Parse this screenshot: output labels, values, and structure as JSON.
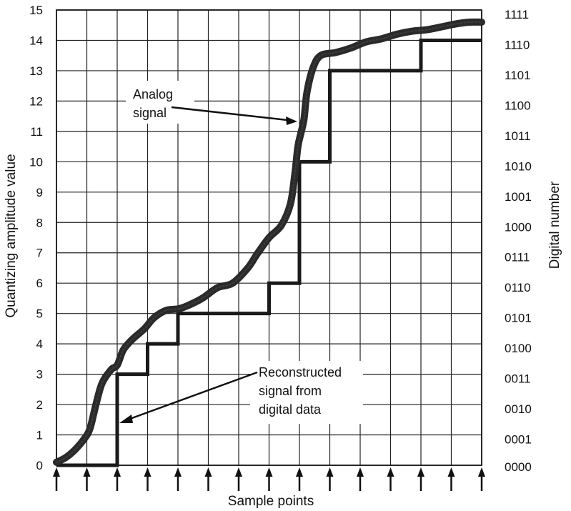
{
  "chart_data": {
    "type": "line",
    "xlabel": "Sample points",
    "ylabel": "Quantizing amplitude value",
    "ylabel_right": "Digital number",
    "ylim": [
      0,
      15
    ],
    "xlim": [
      0,
      14
    ],
    "grid": true,
    "y_ticks": [
      "0",
      "1",
      "2",
      "3",
      "4",
      "5",
      "6",
      "7",
      "8",
      "9",
      "10",
      "11",
      "12",
      "13",
      "14",
      "15"
    ],
    "y_ticks_right": [
      "0000",
      "0001",
      "0010",
      "0011",
      "0100",
      "0101",
      "0110",
      "0111",
      "1000",
      "1001",
      "1010",
      "1011",
      "1100",
      "1101",
      "1110",
      "1111"
    ],
    "sample_points": [
      0,
      1,
      2,
      3,
      4,
      5,
      6,
      7,
      8,
      9,
      10,
      11,
      12,
      13,
      14
    ],
    "series": [
      {
        "name": "Analog signal",
        "x": [
          0,
          0.3,
          0.6,
          0.9,
          1.1,
          1.3,
          1.5,
          1.8,
          2.0,
          2.2,
          2.5,
          2.9,
          3.2,
          3.6,
          4.0,
          4.3,
          4.8,
          5.3,
          5.8,
          6.3,
          6.6,
          7.0,
          7.4,
          7.7,
          7.85,
          7.95,
          8.05,
          8.15,
          8.25,
          8.45,
          8.7,
          9.2,
          9.7,
          10.2,
          10.7,
          11.2,
          11.7,
          12.2,
          12.7,
          13.2,
          13.6,
          14.0
        ],
        "y": [
          0.1,
          0.25,
          0.5,
          0.85,
          1.2,
          2.0,
          2.7,
          3.15,
          3.3,
          3.8,
          4.15,
          4.5,
          4.85,
          5.1,
          5.15,
          5.25,
          5.5,
          5.85,
          6.0,
          6.5,
          6.95,
          7.5,
          7.9,
          8.6,
          9.6,
          10.5,
          10.95,
          11.4,
          12.3,
          13.1,
          13.5,
          13.6,
          13.75,
          13.95,
          14.05,
          14.2,
          14.3,
          14.35,
          14.45,
          14.55,
          14.6,
          14.6
        ]
      },
      {
        "name": "Reconstructed signal from digital data",
        "step": true,
        "x": [
          0,
          1,
          2,
          3,
          4,
          5,
          6,
          7,
          8,
          9,
          10,
          11,
          12,
          13,
          14
        ],
        "y": [
          0,
          0,
          3,
          4,
          5,
          5,
          5,
          6,
          10,
          13,
          13,
          13,
          14,
          14,
          14
        ]
      }
    ],
    "annotations": [
      {
        "lines": [
          "Analog",
          "signal"
        ]
      },
      {
        "lines": [
          "Reconstructed",
          "signal from",
          "digital data"
        ]
      }
    ]
  }
}
